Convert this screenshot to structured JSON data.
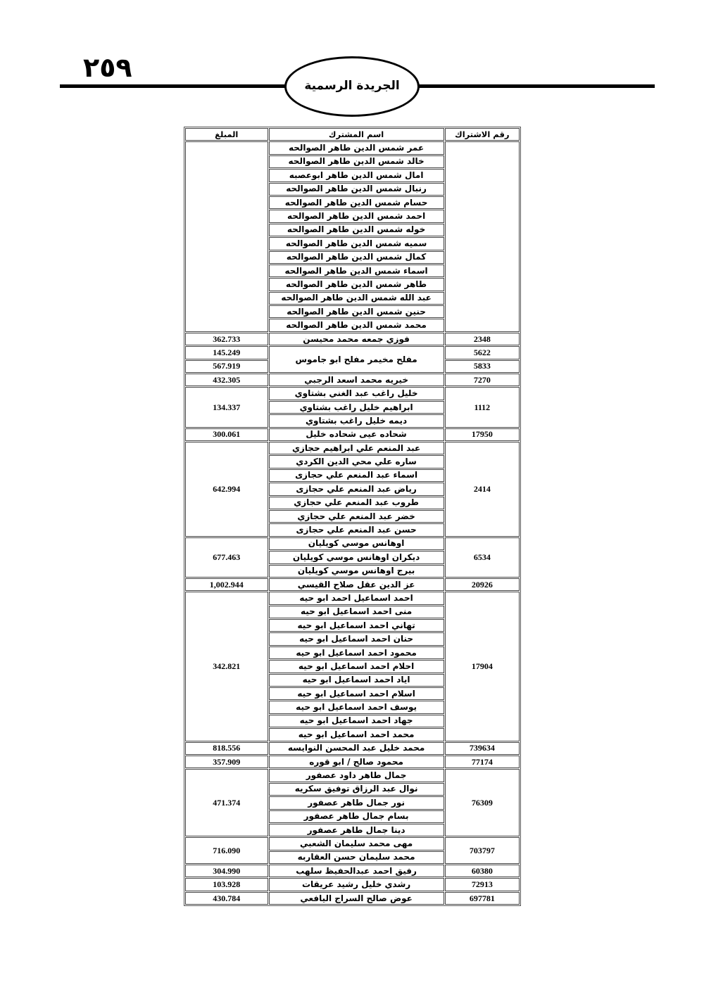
{
  "header": {
    "page_number": "٢٥٩",
    "title": "الجريدة الرسمية"
  },
  "table": {
    "columns": [
      "رقم الاشتراك",
      "اسم المشترك",
      "المبلغ"
    ],
    "groups": [
      {
        "ids": [],
        "amounts": [],
        "names": [
          "عمر شمس الدين طاهر الصوالحه",
          "خالد شمس الدين طاهر الصوالحه",
          "امال شمس الدين طاهر ابوعصبه",
          "رنبال شمس الدين طاهر الصوالحه",
          "حسام شمس الدين طاهر الصوالحه",
          "احمد شمس الدين طاهر الصوالحه",
          "خوله شمس الدين طاهر الصوالحه",
          "سميه شمس الدين طاهر الصوالحه",
          "كمال شمس الدين طاهر الصوالحه",
          "اسماء شمس الدين طاهر الصوالحه",
          "طاهر شمس الدين طاهر الصوالحه",
          "عبد الله شمس الدين طاهر الصوالحه",
          "حنين شمس الدين طاهر الصوالحه",
          "محمد شمس الدين طاهر الصوالحه"
        ]
      },
      {
        "ids": [
          "2348"
        ],
        "amounts": [
          "362.733"
        ],
        "names": [
          "فوزي جمعه محمد محيسن"
        ]
      },
      {
        "ids": [
          "5622",
          "5833"
        ],
        "amounts": [
          "145.249",
          "567.919"
        ],
        "names": [
          "مفلح مخيمر مفلح ابو جاموس"
        ]
      },
      {
        "ids": [
          "7270"
        ],
        "amounts": [
          "432.305"
        ],
        "names": [
          "خيريه محمد اسعد الرجبي"
        ]
      },
      {
        "ids": [
          "1112"
        ],
        "amounts": [
          "134.337"
        ],
        "names": [
          "خليل راغب عبد الغني بشتاوي",
          "ابراهيم خليل راغب بشتاوي",
          "ديمه خليل راغب بشتاوي"
        ]
      },
      {
        "ids": [
          "17950"
        ],
        "amounts": [
          "300.061"
        ],
        "names": [
          "شحاده عيى شحاده خليل"
        ]
      },
      {
        "ids": [
          "2414"
        ],
        "amounts": [
          "642.994"
        ],
        "names": [
          "عبد المنعم علي ابراهيم حجازي",
          "ساره علي محي الدين الكردي",
          "اسماء عبد المنعم علي حجازى",
          "رياض عبد المنعم علي حجازى",
          "طروب عبد المنعم علي حجازي",
          "خضر عبد المنعم علي حجازي",
          "حسن عبد المنعم علي حجازى"
        ]
      },
      {
        "ids": [
          "6534"
        ],
        "amounts": [
          "677.463"
        ],
        "names": [
          "اوهانس موسي كويليان",
          "ديكران اوهانس موسي كويليان",
          "بيرج اوهانس موسي كويليان"
        ]
      },
      {
        "ids": [
          "20926"
        ],
        "amounts": [
          "1,002.944"
        ],
        "names": [
          "عز الدين عقل صلاح القيسي"
        ]
      },
      {
        "ids": [
          "17904"
        ],
        "amounts": [
          "342.821"
        ],
        "names": [
          "احمد اسماعيل احمد ابو حيه",
          "منى احمد اسماعيل ابو حيه",
          "تهاني احمد اسماعيل ابو حيه",
          "حنان احمد اسماعيل ابو حيه",
          "محمود احمد اسماعيل ابو حيه",
          "احلام احمد اسماعيل ابو حيه",
          "اياد احمد اسماعيل ابو حيه",
          "اسلام احمد اسماعيل ابو حيه",
          "يوسف احمد اسماعيل ابو حيه",
          "جهاد احمد اسماعيل ابو حيه",
          "محمد احمد اسماعيل ابو حيه"
        ]
      },
      {
        "ids": [
          "739634"
        ],
        "amounts": [
          "818.556"
        ],
        "names": [
          "محمد خليل عبد المحسن النوايسه"
        ]
      },
      {
        "ids": [
          "77174"
        ],
        "amounts": [
          "357.909"
        ],
        "names": [
          "محمود صالح / ابو قوره"
        ]
      },
      {
        "ids": [
          "76309"
        ],
        "amounts": [
          "471.374"
        ],
        "names": [
          "جمال طاهر داود عصفور",
          "نوال عبد الرزاق توفيق سكريه",
          "نور جمال طاهر عصفور",
          "بسام جمال طاهر عصفور",
          "دينا جمال طاهر عصفور"
        ]
      },
      {
        "ids": [
          "703797"
        ],
        "amounts": [
          "716.090"
        ],
        "names": [
          "مهى محمد سليمان الشعبي",
          "محمد سليمان حسن العقاربه"
        ]
      },
      {
        "ids": [
          "60380"
        ],
        "amounts": [
          "304.990"
        ],
        "names": [
          "رفيق احمد عبدالحفيظ سلهب"
        ]
      },
      {
        "ids": [
          "72913"
        ],
        "amounts": [
          "103.928"
        ],
        "names": [
          "رشدي خليل رشيد عريقات"
        ]
      },
      {
        "ids": [
          "697781"
        ],
        "amounts": [
          "430.784"
        ],
        "names": [
          "عوض صالح السراج اليافعي"
        ]
      }
    ]
  }
}
